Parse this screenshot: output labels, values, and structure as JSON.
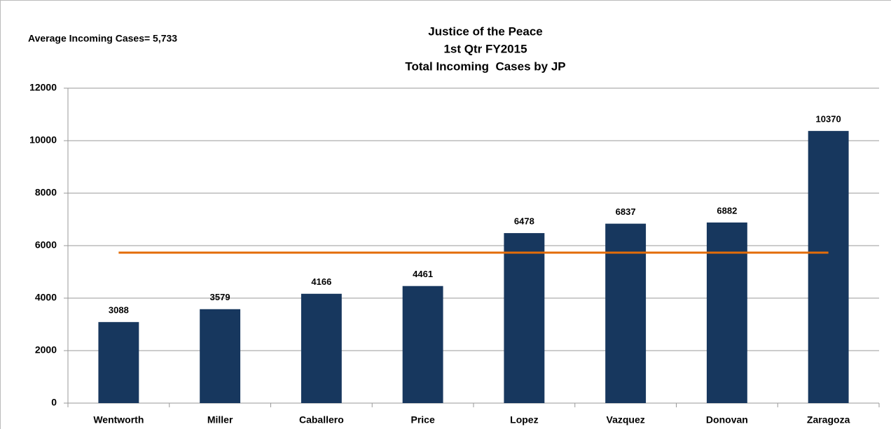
{
  "chart_data": {
    "type": "bar",
    "title": [
      "Justice of the Peace",
      "1st Qtr FY2015",
      "Total Incoming  Cases by JP"
    ],
    "annotation": "Average Incoming Cases= 5,733",
    "categories": [
      "Wentworth",
      "Miller",
      "Caballero",
      "Price",
      "Lopez",
      "Vazquez",
      "Donovan",
      "Zaragoza"
    ],
    "values": [
      3088,
      3579,
      4166,
      4461,
      6478,
      6837,
      6882,
      10370
    ],
    "color": "#17375e",
    "average_line": {
      "value": 5733,
      "color": "#e36c09"
    },
    "ylim": [
      0,
      12000
    ],
    "yticks": [
      0,
      2000,
      4000,
      6000,
      8000,
      10000,
      12000
    ],
    "grid": true
  }
}
